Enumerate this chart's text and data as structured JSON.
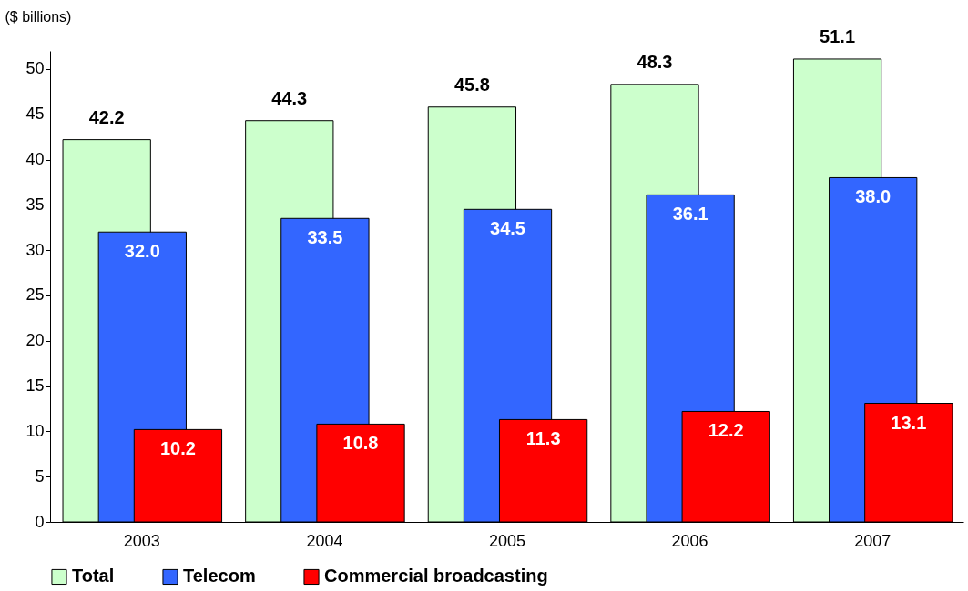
{
  "chart_data": {
    "type": "bar",
    "ylabel": "($ billions)",
    "categories": [
      "2003",
      "2004",
      "2005",
      "2006",
      "2007"
    ],
    "series": [
      {
        "name": "Total",
        "color": "#ccffcc",
        "values": [
          42.2,
          44.3,
          45.8,
          48.3,
          51.1
        ],
        "value_labels": [
          "42.2",
          "44.3",
          "45.8",
          "48.3",
          "51.1"
        ]
      },
      {
        "name": "Telecom",
        "color": "#3366ff",
        "values": [
          32.0,
          33.5,
          34.5,
          36.1,
          38.0
        ],
        "value_labels": [
          "32.0",
          "33.5",
          "34.5",
          "36.1",
          "38.0"
        ]
      },
      {
        "name": "Commercial broadcasting",
        "color": "#ff0000",
        "values": [
          10.2,
          10.8,
          11.3,
          12.2,
          13.1
        ],
        "value_labels": [
          "10.2",
          "10.8",
          "11.3",
          "12.2",
          "13.1"
        ]
      }
    ],
    "ylim": [
      0,
      52
    ],
    "yticks": [
      0,
      5,
      10,
      15,
      20,
      25,
      30,
      35,
      40,
      45,
      50
    ],
    "grid": false,
    "legend": "bottom"
  }
}
